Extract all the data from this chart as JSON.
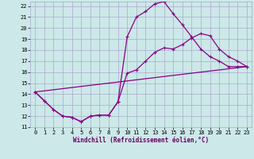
{
  "xlabel": "Windchill (Refroidissement éolien,°C)",
  "background_color": "#cce8e8",
  "grid_color": "#aaaacc",
  "line_color": "#880088",
  "xlim": [
    -0.5,
    23.5
  ],
  "ylim": [
    11,
    22.4
  ],
  "xticks": [
    0,
    1,
    2,
    3,
    4,
    5,
    6,
    7,
    8,
    9,
    10,
    11,
    12,
    13,
    14,
    15,
    16,
    17,
    18,
    19,
    20,
    21,
    22,
    23
  ],
  "yticks": [
    11,
    12,
    13,
    14,
    15,
    16,
    17,
    18,
    19,
    20,
    21,
    22
  ],
  "line1_x": [
    0,
    1,
    2,
    3,
    4,
    5,
    6,
    7,
    8,
    9,
    10,
    11,
    12,
    13,
    14,
    15,
    16,
    17,
    18,
    19,
    20,
    21,
    22,
    23
  ],
  "line1_y": [
    14.2,
    13.4,
    12.6,
    12.0,
    11.9,
    11.5,
    12.0,
    12.1,
    12.1,
    13.3,
    19.2,
    21.0,
    21.5,
    22.2,
    22.4,
    21.3,
    20.3,
    19.2,
    18.1,
    17.4,
    17.0,
    16.5,
    16.5,
    16.5
  ],
  "line2_x": [
    0,
    1,
    2,
    3,
    4,
    5,
    6,
    7,
    8,
    9,
    10,
    11,
    12,
    13,
    14,
    15,
    16,
    17,
    18,
    19,
    20,
    21,
    22,
    23
  ],
  "line2_y": [
    14.2,
    13.4,
    12.6,
    12.0,
    11.9,
    11.5,
    12.0,
    12.1,
    12.1,
    13.3,
    15.9,
    16.2,
    17.0,
    17.8,
    18.2,
    18.1,
    18.5,
    19.1,
    19.5,
    19.3,
    18.1,
    17.4,
    17.0,
    16.5
  ],
  "line3_x": [
    0,
    23
  ],
  "line3_y": [
    14.2,
    16.5
  ],
  "marker": "+",
  "markersize": 3,
  "markeredgewidth": 0.8,
  "linewidth": 0.9,
  "tick_fontsize": 5,
  "xlabel_fontsize": 5.5
}
